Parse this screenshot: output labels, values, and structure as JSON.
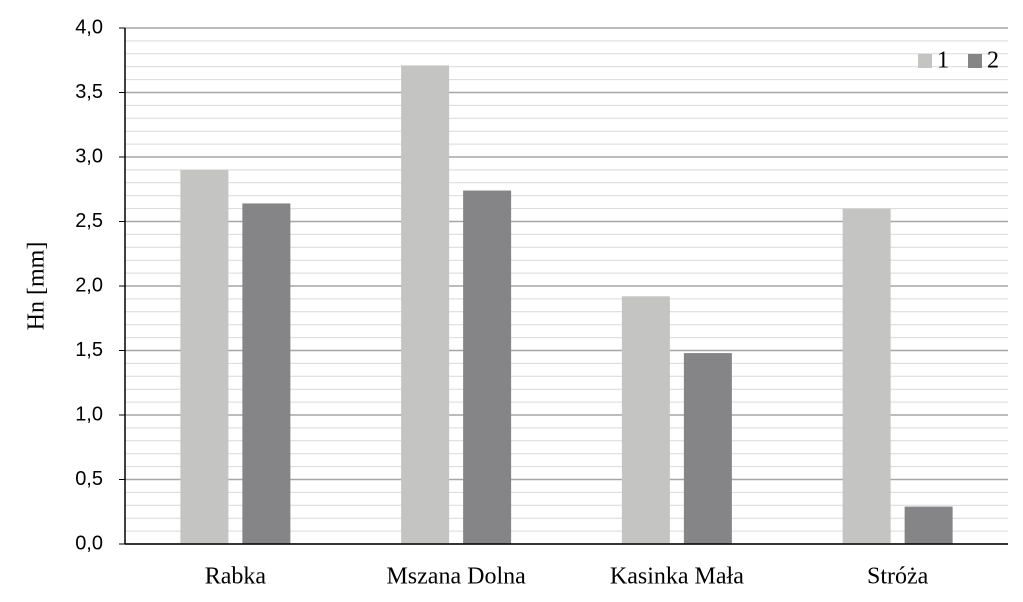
{
  "chart_data": {
    "type": "bar",
    "y_label": "Hn [mm]",
    "categories": [
      "Rabka",
      "Mszana Dolna",
      "Kasinka Mała",
      "Stróża"
    ],
    "series": [
      {
        "name": "1",
        "color": "#c4c4c3",
        "values": [
          2.9,
          3.71,
          1.92,
          2.6
        ]
      },
      {
        "name": "2",
        "color": "#858587",
        "values": [
          2.64,
          2.74,
          1.48,
          0.29
        ]
      }
    ],
    "ylim": [
      0,
      4
    ],
    "yticks": [
      {
        "value": 0,
        "label": "0,0"
      },
      {
        "value": 0.5,
        "label": "0,5"
      },
      {
        "value": 1,
        "label": "1,0"
      },
      {
        "value": 1.5,
        "label": "1,5"
      },
      {
        "value": 2,
        "label": "2,0"
      },
      {
        "value": 2.5,
        "label": "2,5"
      },
      {
        "value": 3,
        "label": "3,0"
      },
      {
        "value": 3.5,
        "label": "3,5"
      },
      {
        "value": 4,
        "label": "4,0"
      }
    ],
    "minor_yticks": [
      0.1,
      0.2,
      0.3,
      0.4,
      0.6,
      0.7,
      0.8,
      0.9,
      1.1,
      1.2,
      1.3,
      1.4,
      1.6,
      1.7,
      1.8,
      1.9,
      2.1,
      2.2,
      2.3,
      2.4,
      2.6,
      2.7,
      2.8,
      2.9,
      3.1,
      3.2,
      3.3,
      3.4,
      3.6,
      3.7,
      3.8,
      3.9
    ],
    "grid": true,
    "legend": "top-right"
  }
}
